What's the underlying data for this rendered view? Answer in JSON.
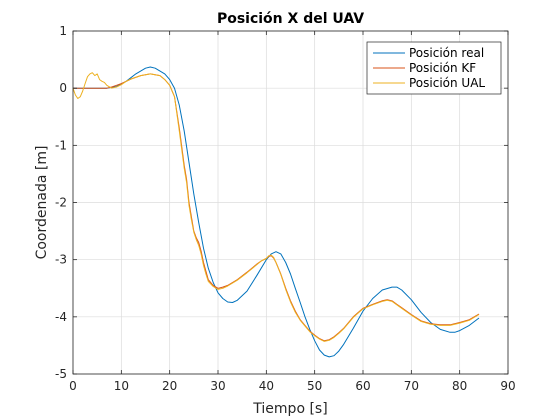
{
  "chart_data": {
    "type": "line",
    "title": "Posición X del UAV",
    "xlabel": "Tiempo [s]",
    "ylabel": "Coordenada [m]",
    "xlim": [
      0,
      90
    ],
    "ylim": [
      -5,
      1
    ],
    "xticks": [
      0,
      10,
      20,
      30,
      40,
      50,
      60,
      70,
      80,
      90
    ],
    "yticks": [
      -5,
      -4,
      -3,
      -2,
      -1,
      0,
      1
    ],
    "xtick_labels": [
      "0",
      "10",
      "20",
      "30",
      "40",
      "50",
      "60",
      "70",
      "80",
      "90"
    ],
    "ytick_labels": [
      "-5",
      "-4",
      "-3",
      "-2",
      "-1",
      "0",
      "1"
    ],
    "grid": true,
    "legend_position": "top-right",
    "series": [
      {
        "name": "Posición real",
        "color": "#0072BD",
        "x": [
          0,
          7,
          9,
          11,
          13,
          15,
          16,
          17,
          19,
          20,
          21,
          22,
          23,
          24,
          25,
          26,
          27,
          28,
          29,
          30,
          31,
          32,
          33,
          34,
          36,
          38,
          40,
          41,
          42,
          43,
          44,
          45,
          46,
          47,
          48,
          49,
          50,
          51,
          52,
          53,
          54,
          55,
          56,
          58,
          60,
          62,
          64,
          66,
          67,
          68,
          70,
          72,
          74,
          76,
          78,
          79,
          80,
          82,
          84
        ],
        "y": [
          0,
          0,
          0.03,
          0.12,
          0.25,
          0.35,
          0.37,
          0.35,
          0.25,
          0.15,
          0.0,
          -0.3,
          -0.75,
          -1.3,
          -1.85,
          -2.35,
          -2.8,
          -3.15,
          -3.4,
          -3.58,
          -3.68,
          -3.74,
          -3.75,
          -3.71,
          -3.55,
          -3.28,
          -3.0,
          -2.9,
          -2.86,
          -2.9,
          -3.05,
          -3.25,
          -3.5,
          -3.75,
          -4.0,
          -4.22,
          -4.42,
          -4.58,
          -4.67,
          -4.7,
          -4.68,
          -4.6,
          -4.48,
          -4.2,
          -3.9,
          -3.68,
          -3.53,
          -3.48,
          -3.48,
          -3.53,
          -3.7,
          -3.92,
          -4.1,
          -4.22,
          -4.27,
          -4.27,
          -4.24,
          -4.15,
          -4.02
        ]
      },
      {
        "name": "Posición KF",
        "color": "#D95319",
        "x": [
          0,
          7,
          8,
          9,
          10,
          11,
          12,
          14,
          16,
          18,
          19,
          20,
          21,
          22,
          23,
          23.5,
          24,
          24.5,
          25,
          25.5,
          26,
          26.5,
          27,
          27.5,
          28,
          29,
          30,
          31,
          32,
          34,
          36,
          38,
          39,
          40,
          40.5,
          41,
          41.5,
          42,
          43,
          44,
          45,
          46,
          47,
          48,
          49,
          50,
          51,
          52,
          53,
          54,
          55,
          56,
          58,
          60,
          62,
          64,
          65,
          66,
          67,
          68,
          70,
          72,
          74,
          76,
          78,
          80,
          82,
          84
        ],
        "y": [
          0,
          0,
          0.02,
          0.05,
          0.08,
          0.12,
          0.16,
          0.22,
          0.25,
          0.22,
          0.15,
          0.05,
          -0.15,
          -0.7,
          -1.35,
          -1.6,
          -2.0,
          -2.25,
          -2.5,
          -2.62,
          -2.7,
          -2.85,
          -3.05,
          -3.2,
          -3.35,
          -3.45,
          -3.5,
          -3.48,
          -3.45,
          -3.35,
          -3.22,
          -3.08,
          -3.02,
          -2.98,
          -2.94,
          -2.93,
          -2.97,
          -3.05,
          -3.25,
          -3.5,
          -3.72,
          -3.9,
          -4.05,
          -4.15,
          -4.25,
          -4.32,
          -4.38,
          -4.42,
          -4.4,
          -4.35,
          -4.28,
          -4.2,
          -4.0,
          -3.85,
          -3.78,
          -3.72,
          -3.7,
          -3.72,
          -3.78,
          -3.84,
          -3.96,
          -4.07,
          -4.12,
          -4.14,
          -4.14,
          -4.1,
          -4.05,
          -3.95
        ]
      },
      {
        "name": "Posición UAL",
        "color": "#EDB120",
        "x": [
          0,
          0.5,
          1,
          1.5,
          2,
          2.5,
          3,
          3.5,
          4,
          4.5,
          5,
          5.5,
          6,
          6.5,
          7,
          8,
          9,
          10,
          11,
          12,
          14,
          16,
          18,
          19,
          20,
          21,
          22,
          23,
          23.5,
          24,
          24.5,
          25,
          25.5,
          26,
          26.5,
          27,
          27.5,
          28,
          29,
          30,
          31,
          32,
          34,
          36,
          38,
          39,
          40,
          40.5,
          41,
          41.5,
          42,
          43,
          44,
          45,
          46,
          47,
          48,
          49,
          50,
          51,
          52,
          53,
          54,
          55,
          56,
          58,
          60,
          62,
          64,
          65,
          66,
          67,
          68,
          70,
          72,
          74,
          76,
          78,
          80,
          82,
          84
        ],
        "y": [
          0,
          -0.12,
          -0.18,
          -0.15,
          -0.05,
          0.08,
          0.2,
          0.25,
          0.27,
          0.22,
          0.25,
          0.15,
          0.12,
          0.1,
          0.05,
          0.0,
          0.02,
          0.06,
          0.12,
          0.16,
          0.22,
          0.25,
          0.22,
          0.15,
          0.05,
          -0.15,
          -0.75,
          -1.4,
          -1.65,
          -2.05,
          -2.3,
          -2.52,
          -2.65,
          -2.75,
          -2.9,
          -3.1,
          -3.25,
          -3.38,
          -3.47,
          -3.52,
          -3.5,
          -3.46,
          -3.36,
          -3.23,
          -3.09,
          -3.02,
          -2.98,
          -2.93,
          -2.92,
          -2.96,
          -3.05,
          -3.26,
          -3.52,
          -3.74,
          -3.92,
          -4.06,
          -4.16,
          -4.26,
          -4.33,
          -4.39,
          -4.43,
          -4.41,
          -4.36,
          -4.29,
          -4.21,
          -4.01,
          -3.86,
          -3.79,
          -3.73,
          -3.71,
          -3.73,
          -3.79,
          -3.85,
          -3.97,
          -4.08,
          -4.13,
          -4.15,
          -4.15,
          -4.11,
          -4.06,
          -3.96
        ]
      }
    ]
  }
}
